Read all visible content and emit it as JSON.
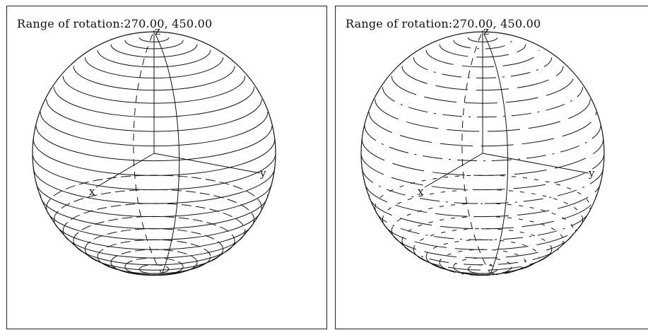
{
  "panels": [
    {
      "range_label": "Range of rotation:270.00, 450.00",
      "axes": {
        "x": "x",
        "y": "y",
        "z": "z"
      },
      "style": "solid-latitudes"
    },
    {
      "range_label": "Range of rotation:270.00, 450.00",
      "axes": {
        "x": "x",
        "y": "y",
        "z": "z"
      },
      "style": "dashed-latitudes"
    }
  ],
  "colors": {
    "line": "#111111",
    "background": "#ffffff",
    "frame": "#222222"
  }
}
